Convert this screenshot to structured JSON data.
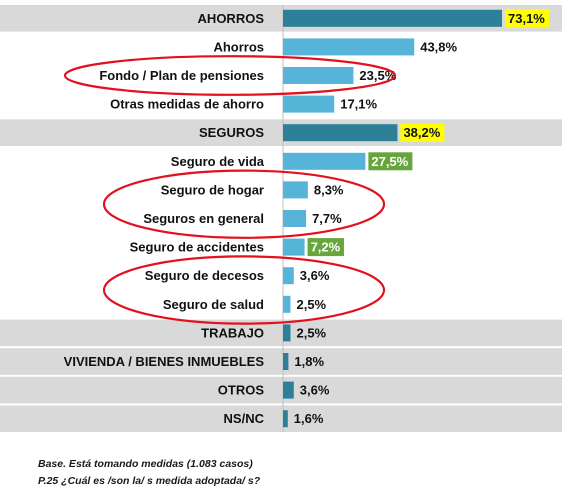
{
  "chart_data": {
    "type": "bar",
    "orientation": "horizontal",
    "xlim": [
      0,
      80
    ],
    "grid": false,
    "categories": [
      "AHORROS",
      "Ahorros",
      "Fondo / Plan de pensiones",
      "Otras medidas de ahorro",
      "SEGUROS",
      "Seguro de vida",
      "Seguro de hogar",
      "Seguros en general",
      "Seguro de accidentes",
      "Seguro de decesos",
      "Seguro de salud",
      "TRABAJO",
      "VIVIENDA / BIENES INMUEBLES",
      "OTROS",
      "NS/NC"
    ],
    "values": [
      73.1,
      43.8,
      23.5,
      17.1,
      38.2,
      27.5,
      8.3,
      7.7,
      7.2,
      3.6,
      2.5,
      2.5,
      1.8,
      3.6,
      1.6
    ],
    "value_labels": [
      "73,1%",
      "43,8%",
      "23,5%",
      "17,1%",
      "38,2%",
      "27,5%",
      "8,3%",
      "7,7%",
      "7,2%",
      "3,6%",
      "2,5%",
      "2,5%",
      "1,8%",
      "3,6%",
      "1,6%"
    ],
    "category_row": [
      true,
      false,
      false,
      false,
      true,
      false,
      false,
      false,
      false,
      false,
      false,
      true,
      true,
      true,
      true
    ],
    "label_highlight": [
      "yellow",
      "none",
      "none",
      "none",
      "yellow",
      "green",
      "none",
      "none",
      "green",
      "none",
      "none",
      "none",
      "none",
      "none",
      "none"
    ],
    "circled_groups": [
      [
        2
      ],
      [
        6,
        7
      ],
      [
        9,
        10
      ]
    ]
  },
  "colors": {
    "bar_main": "#2e7f98",
    "bar_sub": "#55b4d8",
    "row_band": "#d9d9d9",
    "highlight_yellow": "#ffff00",
    "highlight_green": "#66a63c",
    "circle": "#e3101e"
  },
  "notes": {
    "base": "Base. Está tomando medidas (1.083 casos)",
    "question": "P.25 ¿Cuál es /son la/ s medida adoptada/ s?"
  }
}
